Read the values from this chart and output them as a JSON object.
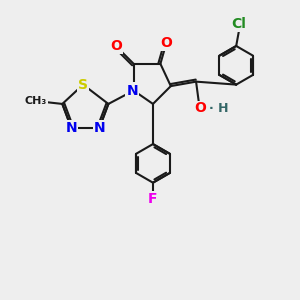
{
  "background_color": "#eeeeee",
  "bond_color": "#1a1a1a",
  "bond_width": 1.5,
  "atom_colors": {
    "O": "#ff0000",
    "N": "#0000ee",
    "S": "#cccc00",
    "F": "#ee00ee",
    "Cl": "#228B22",
    "H": "#336666",
    "C": "#1a1a1a"
  },
  "font_size": 9,
  "fig_size": [
    3.0,
    3.0
  ],
  "dpi": 100
}
